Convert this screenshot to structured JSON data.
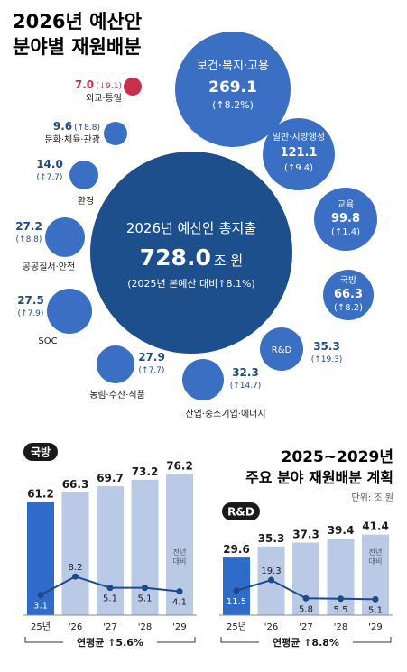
{
  "title_line1": "2026년 예산안",
  "title_line2": "분야별 재원배분",
  "colors": {
    "big": "#1d4f8c",
    "bubble": "#3a6fc4",
    "red": "#c8304b",
    "text": "#1a1a1a",
    "dark_blue_text": "#1f4a87",
    "bar_light": "#b9c9e6",
    "bar_dark": "#2f6bc9",
    "line": "#1d4a8a"
  },
  "total": {
    "label": "2026년 예산안 총지출",
    "amount": "728.0",
    "unit": "조 원",
    "change": "(2025년 본예산 대비↑8.1%)"
  },
  "chart_data": [
    {
      "type": "bubble",
      "title": "2026년 예산안 분야별 재원배분",
      "unit": "조 원",
      "items": [
        {
          "name": "보건·복지·고용",
          "value": 269.1,
          "change": "(↑8.2%)"
        },
        {
          "name": "일반·지방행정",
          "value": 121.1,
          "change": "(↑9.4)"
        },
        {
          "name": "교육",
          "value": 99.8,
          "change": "(↑1.4)"
        },
        {
          "name": "국방",
          "value": 66.3,
          "change": "(↑8.2)"
        },
        {
          "name": "R&D",
          "value": 35.3,
          "change": "(↑19.3)"
        },
        {
          "name": "산업·중소기업·에너지",
          "value": 32.3,
          "change": "(↑14.7)"
        },
        {
          "name": "농림·수산·식품",
          "value": 27.9,
          "change": "(↑7.7)"
        },
        {
          "name": "SOC",
          "value": 27.5,
          "change": "(↑7.9)"
        },
        {
          "name": "공공질서·안전",
          "value": 27.2,
          "change": "(↑8.8)"
        },
        {
          "name": "환경",
          "value": 14.0,
          "change": "(↑7.7)"
        },
        {
          "name": "문화·체육·관광",
          "value": 9.6,
          "change": "(↑8.8)"
        },
        {
          "name": "외교·통일",
          "value": 7.0,
          "change": "(↓9.1)"
        }
      ]
    },
    {
      "type": "bar",
      "title": "국방",
      "categories": [
        "25년",
        "'26",
        "'27",
        "'28",
        "'29"
      ],
      "values": [
        61.2,
        66.3,
        69.7,
        73.2,
        76.2
      ],
      "line_values": [
        3.1,
        8.2,
        5.1,
        5.1,
        4.1
      ],
      "line_label": "전년 대비 (%)",
      "summary": "연평균 ↑5.6%"
    },
    {
      "type": "bar",
      "title": "R&D",
      "categories": [
        "25년",
        "'26",
        "'27",
        "'28",
        "'29"
      ],
      "values": [
        29.6,
        35.3,
        37.3,
        39.4,
        41.4
      ],
      "line_values": [
        11.5,
        19.3,
        5.8,
        5.5,
        5.1
      ],
      "line_label": "전년 대비 (%)",
      "summary": "연평균 ↑8.8%"
    }
  ],
  "plan_title_line1": "2025~2029년",
  "plan_title_line2": "주요 분야 재원배분 계획",
  "plan_unit": "단위: 조 원"
}
